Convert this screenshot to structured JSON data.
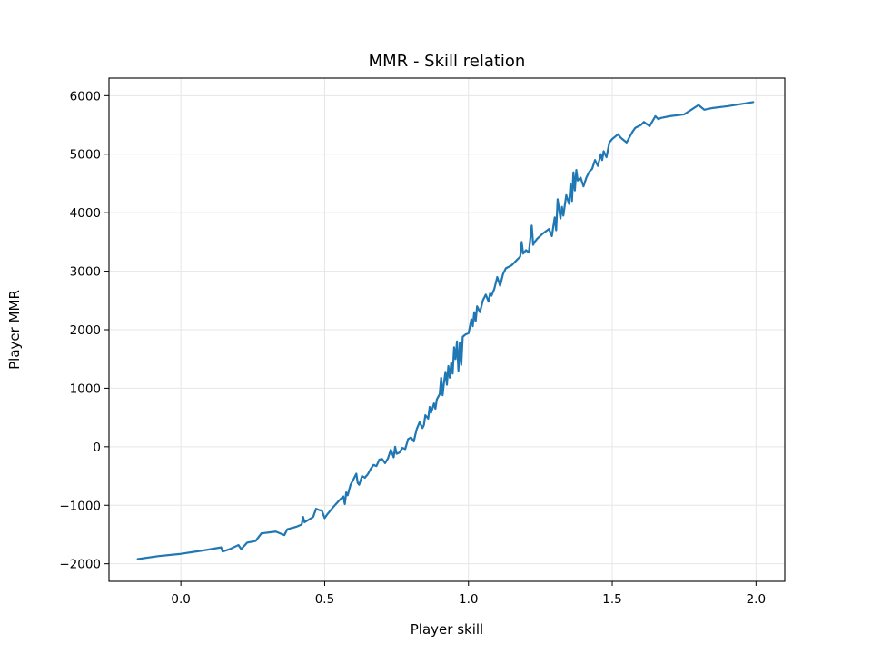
{
  "chart_data": {
    "type": "line",
    "title": "MMR - Skill relation",
    "xlabel": "Player skill",
    "ylabel": "Player MMR",
    "xlim": [
      -0.25,
      2.1
    ],
    "ylim": [
      -2300,
      6300
    ],
    "xticks": [
      0.0,
      0.5,
      1.0,
      1.5,
      2.0
    ],
    "xtick_labels": [
      "0.0",
      "0.5",
      "1.0",
      "1.5",
      "2.0"
    ],
    "yticks": [
      -2000,
      -1000,
      0,
      1000,
      2000,
      3000,
      4000,
      5000,
      6000
    ],
    "ytick_labels": [
      "−2000",
      "−1000",
      "0",
      "1000",
      "2000",
      "3000",
      "4000",
      "5000",
      "6000"
    ],
    "grid": true,
    "series": [
      {
        "color": "#1f77b4",
        "x": [
          -0.15,
          -0.08,
          0.0,
          0.08,
          0.14,
          0.145,
          0.17,
          0.2,
          0.21,
          0.23,
          0.26,
          0.28,
          0.33,
          0.36,
          0.37,
          0.4,
          0.42,
          0.425,
          0.43,
          0.46,
          0.47,
          0.48,
          0.49,
          0.5,
          0.51,
          0.53,
          0.55,
          0.565,
          0.57,
          0.575,
          0.58,
          0.59,
          0.6,
          0.61,
          0.615,
          0.62,
          0.63,
          0.64,
          0.65,
          0.66,
          0.67,
          0.68,
          0.69,
          0.7,
          0.71,
          0.72,
          0.73,
          0.74,
          0.745,
          0.75,
          0.76,
          0.77,
          0.78,
          0.79,
          0.8,
          0.81,
          0.815,
          0.82,
          0.83,
          0.84,
          0.845,
          0.85,
          0.86,
          0.865,
          0.87,
          0.88,
          0.885,
          0.89,
          0.9,
          0.905,
          0.91,
          0.915,
          0.92,
          0.925,
          0.93,
          0.935,
          0.94,
          0.945,
          0.95,
          0.955,
          0.96,
          0.965,
          0.97,
          0.975,
          0.98,
          0.99,
          1.0,
          1.005,
          1.01,
          1.015,
          1.02,
          1.025,
          1.03,
          1.04,
          1.05,
          1.055,
          1.06,
          1.07,
          1.075,
          1.08,
          1.09,
          1.1,
          1.11,
          1.12,
          1.13,
          1.15,
          1.17,
          1.18,
          1.185,
          1.19,
          1.2,
          1.21,
          1.22,
          1.225,
          1.23,
          1.24,
          1.26,
          1.28,
          1.29,
          1.3,
          1.305,
          1.31,
          1.32,
          1.325,
          1.33,
          1.34,
          1.35,
          1.355,
          1.36,
          1.365,
          1.37,
          1.375,
          1.38,
          1.39,
          1.4,
          1.41,
          1.42,
          1.43,
          1.44,
          1.45,
          1.46,
          1.465,
          1.47,
          1.48,
          1.49,
          1.5,
          1.51,
          1.52,
          1.53,
          1.55,
          1.57,
          1.58,
          1.6,
          1.61,
          1.63,
          1.65,
          1.66,
          1.67,
          1.7,
          1.75,
          1.8,
          1.81,
          1.82,
          1.85,
          1.9,
          1.99
        ],
        "y": [
          -1920,
          -1870,
          -1830,
          -1770,
          -1720,
          -1790,
          -1750,
          -1680,
          -1750,
          -1640,
          -1610,
          -1480,
          -1450,
          -1510,
          -1410,
          -1370,
          -1330,
          -1200,
          -1290,
          -1200,
          -1060,
          -1080,
          -1090,
          -1220,
          -1150,
          -1030,
          -920,
          -850,
          -980,
          -780,
          -830,
          -650,
          -560,
          -460,
          -620,
          -650,
          -500,
          -530,
          -470,
          -380,
          -310,
          -330,
          -220,
          -210,
          -280,
          -200,
          -50,
          -180,
          0,
          -120,
          -100,
          -20,
          -40,
          130,
          160,
          90,
          200,
          300,
          420,
          320,
          370,
          540,
          480,
          680,
          580,
          740,
          650,
          810,
          900,
          1180,
          880,
          1100,
          1280,
          1060,
          1380,
          1180,
          1430,
          1250,
          1700,
          1500,
          1800,
          1300,
          1780,
          1400,
          1880,
          1920,
          1940,
          2050,
          2180,
          2060,
          2300,
          2150,
          2400,
          2300,
          2500,
          2550,
          2600,
          2480,
          2620,
          2580,
          2700,
          2900,
          2750,
          2950,
          3050,
          3100,
          3200,
          3250,
          3500,
          3300,
          3360,
          3320,
          3780,
          3450,
          3500,
          3560,
          3650,
          3720,
          3600,
          3920,
          3700,
          4230,
          3900,
          4100,
          3950,
          4300,
          4150,
          4500,
          4200,
          4690,
          4380,
          4730,
          4550,
          4600,
          4450,
          4600,
          4700,
          4750,
          4900,
          4800,
          5000,
          4900,
          5050,
          4950,
          5200,
          5260,
          5300,
          5340,
          5280,
          5200,
          5380,
          5450,
          5500,
          5550,
          5480,
          5650,
          5600,
          5620,
          5650,
          5680,
          5840,
          5800,
          5760,
          5790,
          5820,
          5890
        ]
      }
    ]
  }
}
